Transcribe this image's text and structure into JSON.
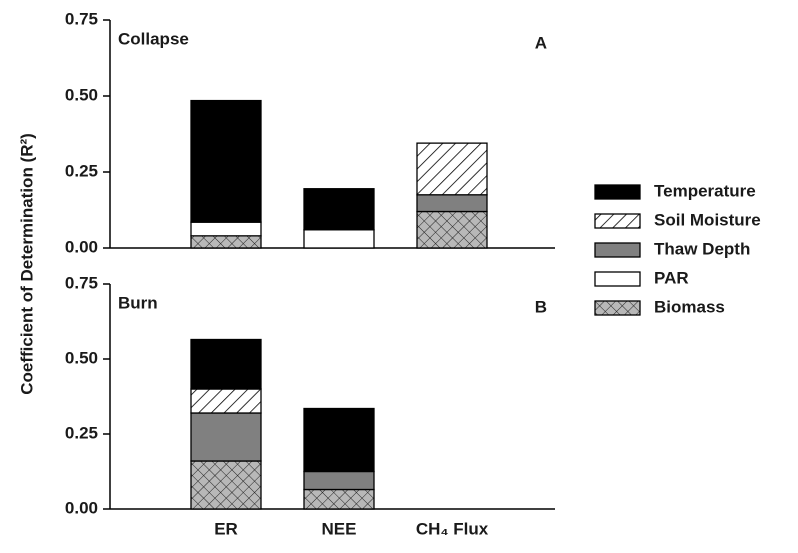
{
  "chart_data": {
    "type": "bar",
    "stacked": true,
    "y_label": "Coefficient of Determination (R²)",
    "categories": [
      "ER",
      "NEE",
      "CH₄ Flux"
    ],
    "series": [
      {
        "name": "Temperature",
        "color": "#000000"
      },
      {
        "name": "Soil Moisture",
        "color": "#ffffff",
        "pattern": "hatch"
      },
      {
        "name": "Thaw Depth",
        "color": "#808080"
      },
      {
        "name": "PAR",
        "color": "#ffffff"
      },
      {
        "name": "Biomass",
        "color": "#b8b8b8",
        "pattern": "crosshatch"
      }
    ],
    "panels": [
      {
        "title": "Collapse",
        "label": "A",
        "ylim": [
          0,
          0.75
        ],
        "yticks": [
          {
            "value": 0,
            "label": "0.00"
          },
          0.25,
          {
            "value": 0.5,
            "label": "0.50"
          },
          0.75
        ],
        "series": [
          {
            "values": [
              0.4,
              0.135,
              null
            ]
          },
          {
            "values": [
              null,
              null,
              0.17
            ]
          },
          {
            "values": [
              null,
              null,
              0.055
            ]
          },
          {
            "values": [
              0.045,
              0.06,
              null
            ]
          },
          {
            "values": [
              0.04,
              null,
              0.12
            ]
          }
        ]
      },
      {
        "title": "Burn",
        "label": "B",
        "ylim": [
          0,
          0.75
        ],
        "yticks": [
          {
            "value": 0,
            "label": "0.00"
          },
          0.25,
          {
            "value": 0.5,
            "label": "0.50"
          },
          0.75
        ],
        "series": [
          {
            "values": [
              0.165,
              0.21,
              null
            ]
          },
          {
            "values": [
              0.08,
              null,
              null
            ]
          },
          {
            "values": [
              0.16,
              0.06,
              null
            ]
          },
          {
            "values": [
              null,
              null,
              null
            ]
          },
          {
            "values": [
              0.16,
              0.065,
              null
            ]
          }
        ]
      }
    ]
  }
}
